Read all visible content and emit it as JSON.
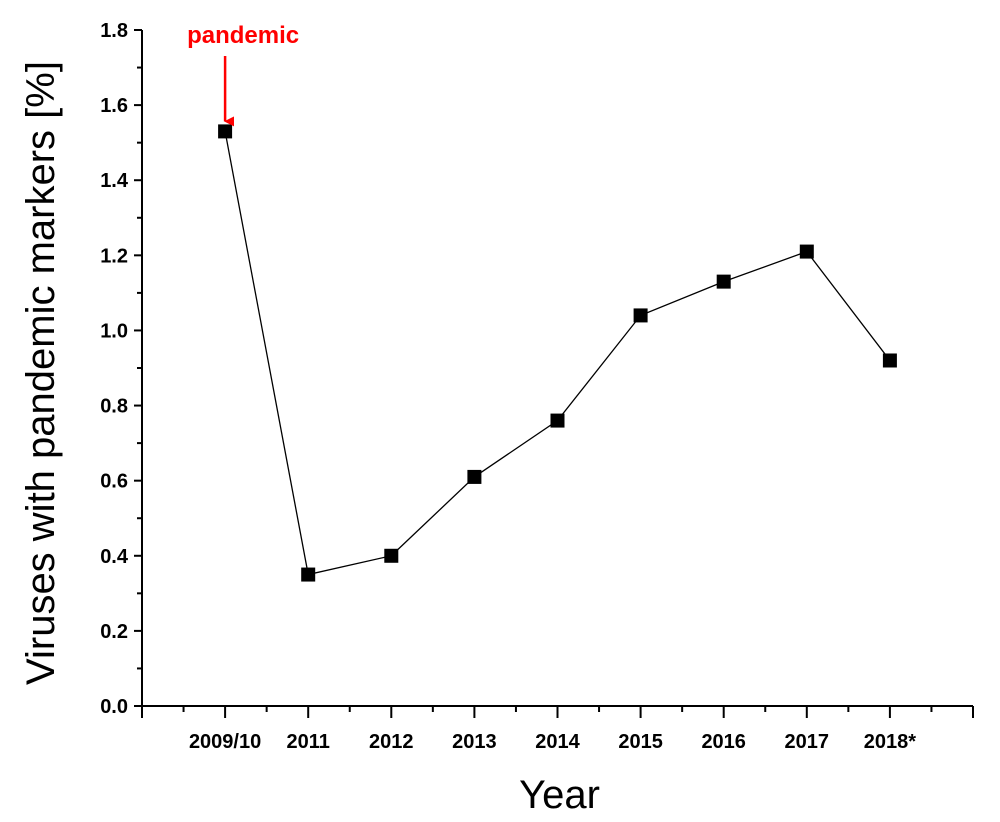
{
  "chart_data": {
    "type": "line",
    "title": "",
    "xlabel": "Year",
    "ylabel": "Viruses with pandemic markers [%]",
    "categories": [
      "2009/10",
      "2011",
      "2012",
      "2013",
      "2014",
      "2015",
      "2016",
      "2017",
      "2018*"
    ],
    "series": [
      {
        "values": [
          1.53,
          0.35,
          0.4,
          0.61,
          0.76,
          1.04,
          1.13,
          1.21,
          0.92
        ]
      }
    ],
    "ylim": [
      0.0,
      1.8
    ],
    "yticks": [
      "0.0",
      "0.2",
      "0.4",
      "0.6",
      "0.8",
      "1.0",
      "1.2",
      "1.4",
      "1.6",
      "1.8"
    ],
    "grid": false,
    "marker": "square",
    "line_color": "#000000",
    "annotation": {
      "text": "pandemic",
      "category": "2009/10",
      "color": "#ff0000"
    }
  }
}
